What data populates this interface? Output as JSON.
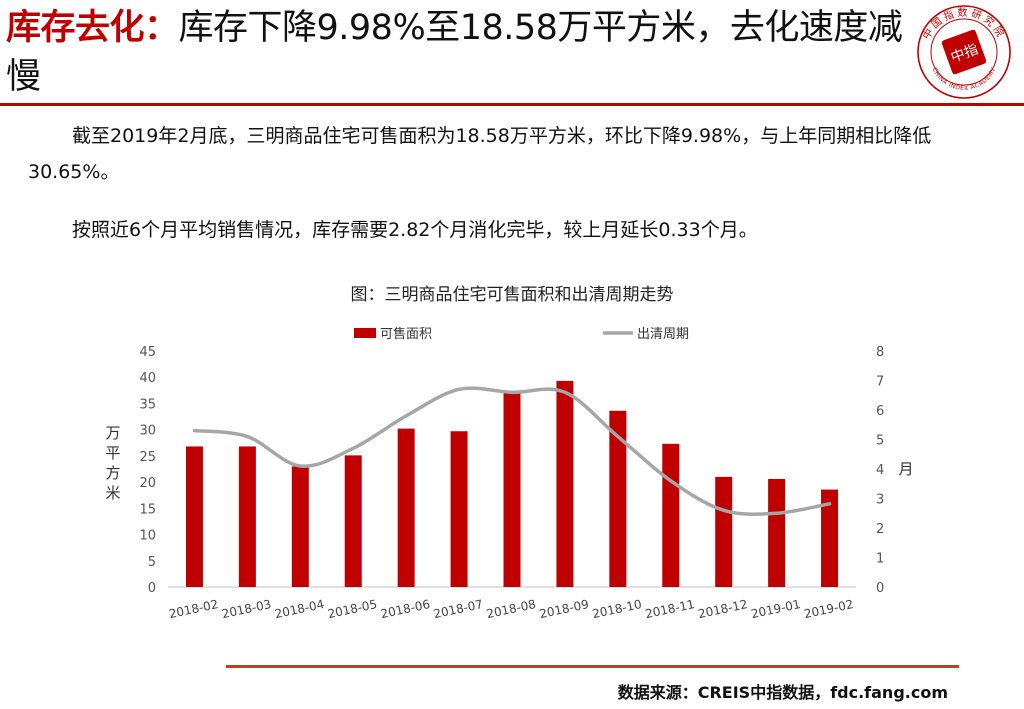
{
  "header": {
    "title_accent": "库存去化：",
    "title_rest": "库存下降9.98%至18.58万平方米，去化速度减慢"
  },
  "logo": {
    "ring_text": "中国指数研究院",
    "center_text": "中指",
    "english_text": "CHINA INDEX ACADEMY",
    "color": "#c00000"
  },
  "paragraphs": [
    "截至2019年2月底，三明商品住宅可售面积为18.58万平方米，环比下降9.98%，与上年同期相比降低30.65%。",
    "按照近6个月平均销售情况，库存需要2.82个月消化完毕，较上月延长0.33个月。"
  ],
  "chart_data": {
    "type": "bar",
    "title": "图：三明商品住宅可售面积和出清周期走势",
    "categories": [
      "2018-02",
      "2018-03",
      "2018-04",
      "2018-05",
      "2018-06",
      "2018-07",
      "2018-08",
      "2018-09",
      "2018-10",
      "2018-11",
      "2018-12",
      "2019-01",
      "2019-02"
    ],
    "series": [
      {
        "name": "可售面积",
        "type": "bar",
        "axis": "left",
        "color": "#c00000",
        "values": [
          26.8,
          26.8,
          23.0,
          25.1,
          30.2,
          29.7,
          37.1,
          39.3,
          33.6,
          27.3,
          21.0,
          20.6,
          18.58
        ]
      },
      {
        "name": "出清周期",
        "type": "line",
        "axis": "right",
        "color": "#a6a6a6",
        "values": [
          5.3,
          5.1,
          4.1,
          4.7,
          5.8,
          6.7,
          6.6,
          6.6,
          5.1,
          3.6,
          2.6,
          2.5,
          2.82
        ]
      }
    ],
    "ylabel": "万平方米",
    "ylim": [
      0,
      45
    ],
    "yticks": [
      0,
      5,
      10,
      15,
      20,
      25,
      30,
      35,
      40,
      45
    ],
    "y2label": "月",
    "y2lim": [
      0,
      8
    ],
    "y2ticks": [
      0,
      1,
      2,
      3,
      4,
      5,
      6,
      7,
      8
    ],
    "grid": false,
    "legend": "top-center"
  },
  "footer": {
    "source": "数据来源：CREIS中指数据，fdc.fang.com"
  }
}
